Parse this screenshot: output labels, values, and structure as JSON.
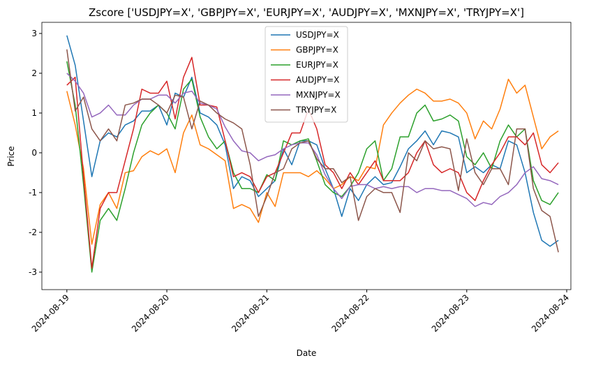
{
  "chart_data": {
    "type": "line",
    "title": "Zscore ['USDJPY=X', 'GBPJPY=X', 'EURJPY=X', 'AUDJPY=X', 'MXNJPY=X', 'TRYJPY=X']",
    "xlabel": "Date",
    "ylabel": "Price",
    "x": [
      "2024-08-19 00:00",
      "2024-08-19 02:00",
      "2024-08-19 04:00",
      "2024-08-19 06:00",
      "2024-08-19 08:00",
      "2024-08-19 10:00",
      "2024-08-19 12:00",
      "2024-08-19 14:00",
      "2024-08-19 16:00",
      "2024-08-19 18:00",
      "2024-08-19 20:00",
      "2024-08-19 22:00",
      "2024-08-20 00:00",
      "2024-08-20 02:00",
      "2024-08-20 04:00",
      "2024-08-20 06:00",
      "2024-08-20 08:00",
      "2024-08-20 10:00",
      "2024-08-20 12:00",
      "2024-08-20 14:00",
      "2024-08-20 16:00",
      "2024-08-20 18:00",
      "2024-08-20 20:00",
      "2024-08-20 22:00",
      "2024-08-21 00:00",
      "2024-08-21 02:00",
      "2024-08-21 04:00",
      "2024-08-21 06:00",
      "2024-08-21 08:00",
      "2024-08-21 10:00",
      "2024-08-21 12:00",
      "2024-08-21 14:00",
      "2024-08-21 16:00",
      "2024-08-21 18:00",
      "2024-08-21 20:00",
      "2024-08-21 22:00",
      "2024-08-22 00:00",
      "2024-08-22 02:00",
      "2024-08-22 04:00",
      "2024-08-22 06:00",
      "2024-08-22 08:00",
      "2024-08-22 10:00",
      "2024-08-22 12:00",
      "2024-08-22 14:00",
      "2024-08-22 16:00",
      "2024-08-22 18:00",
      "2024-08-22 20:00",
      "2024-08-22 22:00",
      "2024-08-23 00:00",
      "2024-08-23 02:00",
      "2024-08-23 04:00",
      "2024-08-23 06:00",
      "2024-08-23 08:00",
      "2024-08-23 10:00",
      "2024-08-23 12:00",
      "2024-08-23 14:00",
      "2024-08-23 16:00",
      "2024-08-23 18:00",
      "2024-08-23 20:00",
      "2024-08-23 22:00"
    ],
    "series": [
      {
        "name": "USDJPY=X",
        "color": "#1f77b4",
        "values": [
          2.95,
          2.2,
          0.8,
          -0.6,
          0.3,
          0.5,
          0.4,
          0.7,
          0.8,
          1.05,
          1.05,
          1.2,
          0.7,
          1.5,
          1.4,
          1.9,
          1.0,
          0.9,
          0.7,
          0.2,
          -0.9,
          -0.6,
          -0.7,
          -1.1,
          -0.9,
          -0.7,
          0.1,
          -0.3,
          0.3,
          0.3,
          0.2,
          -0.4,
          -0.9,
          -1.6,
          -0.9,
          -1.2,
          -0.8,
          -0.6,
          -0.8,
          -0.75,
          -0.35,
          0.1,
          0.3,
          0.55,
          0.2,
          0.55,
          0.5,
          0.4,
          -0.5,
          -0.35,
          -0.5,
          -0.3,
          -0.4,
          0.3,
          0.2,
          -0.5,
          -1.5,
          -2.2,
          -2.35,
          -2.2
        ]
      },
      {
        "name": "GBPJPY=X",
        "color": "#ff7f0e",
        "values": [
          1.55,
          0.7,
          -0.4,
          -2.3,
          -1.3,
          -1.0,
          -1.4,
          -0.5,
          -0.45,
          -0.1,
          0.05,
          -0.05,
          0.1,
          -0.5,
          0.5,
          0.95,
          0.2,
          0.1,
          -0.05,
          -0.2,
          -1.4,
          -1.3,
          -1.4,
          -1.75,
          -1.0,
          -1.35,
          -0.5,
          -0.5,
          -0.5,
          -0.6,
          -0.45,
          -0.65,
          -0.9,
          -0.8,
          -0.6,
          -0.7,
          -0.35,
          -0.4,
          0.7,
          1.0,
          1.25,
          1.45,
          1.6,
          1.5,
          1.3,
          1.3,
          1.35,
          1.25,
          1.0,
          0.35,
          0.8,
          0.6,
          1.1,
          1.85,
          1.5,
          1.7,
          0.9,
          0.1,
          0.4,
          0.55
        ]
      },
      {
        "name": "EURJPY=X",
        "color": "#2ca02c",
        "values": [
          2.3,
          1.2,
          -0.8,
          -3.0,
          -1.7,
          -1.4,
          -1.7,
          -0.9,
          0,
          0.7,
          1.0,
          1.2,
          1.0,
          0.6,
          1.6,
          1.85,
          0.9,
          0.4,
          0.1,
          0.3,
          -0.5,
          -0.9,
          -0.9,
          -1.0,
          -0.55,
          -0.7,
          0.3,
          0.2,
          0.3,
          0.35,
          -0.2,
          -0.8,
          -1.0,
          -1.1,
          -0.85,
          -0.5,
          0.1,
          0.3,
          -0.7,
          -0.4,
          0.4,
          0.4,
          1.0,
          1.2,
          0.8,
          0.85,
          0.95,
          0.8,
          -0.1,
          -0.3,
          0,
          -0.4,
          0.3,
          0.7,
          0.4,
          0.6,
          -0.7,
          -1.2,
          -1.3,
          -1.0
        ]
      },
      {
        "name": "AUDJPY=X",
        "color": "#d62728",
        "values": [
          1.7,
          1.9,
          -0.6,
          -2.9,
          -1.4,
          -1.0,
          -1.0,
          -0.2,
          0.6,
          1.6,
          1.5,
          1.5,
          1.8,
          0.85,
          1.9,
          2.4,
          1.2,
          1.2,
          1.15,
          0.3,
          -0.6,
          -0.5,
          -0.6,
          -1.0,
          -0.6,
          -0.5,
          0.0,
          0.5,
          0.5,
          1.1,
          0.6,
          -0.3,
          -0.5,
          -0.9,
          -0.5,
          -0.8,
          -0.5,
          -0.2,
          -0.7,
          -0.7,
          -0.7,
          -0.5,
          0,
          0.3,
          -0.3,
          -0.5,
          -0.4,
          -0.5,
          -1.0,
          -1.2,
          -0.7,
          -0.3,
          0,
          0.4,
          0.4,
          0.2,
          0.5,
          -0.3,
          -0.5,
          -0.25
        ]
      },
      {
        "name": "MXNJPY=X",
        "color": "#9467bd",
        "values": [
          2.0,
          1.8,
          1.5,
          0.9,
          1.0,
          1.2,
          0.95,
          0.95,
          1.2,
          1.35,
          1.35,
          1.45,
          1.45,
          1.25,
          1.5,
          1.55,
          1.25,
          1.2,
          1.1,
          0.65,
          0.3,
          0.05,
          0,
          -0.2,
          -0.1,
          -0.05,
          0.1,
          0.2,
          0.25,
          0.25,
          -0.05,
          -0.55,
          -0.9,
          -1.15,
          -0.85,
          -0.8,
          -0.8,
          -0.9,
          -0.85,
          -0.9,
          -0.85,
          -0.85,
          -1.0,
          -0.9,
          -0.9,
          -0.95,
          -0.95,
          -1.05,
          -1.15,
          -1.35,
          -1.25,
          -1.3,
          -1.1,
          -1.0,
          -0.8,
          -0.5,
          -0.35,
          -0.65,
          -0.7,
          -0.8
        ]
      },
      {
        "name": "TRYJPY=X",
        "color": "#8c564b",
        "values": [
          2.6,
          1.05,
          1.4,
          0.6,
          0.3,
          0.6,
          0.3,
          1.2,
          1.25,
          1.35,
          1.35,
          1.2,
          1.0,
          1.45,
          1.4,
          0.6,
          1.3,
          1.2,
          1.0,
          0.85,
          0.75,
          0.6,
          -0.3,
          -1.6,
          -1.1,
          -0.5,
          -0.4,
          0.1,
          0.25,
          0.3,
          -0.15,
          -0.4,
          -0.4,
          -0.75,
          -0.6,
          -1.7,
          -1.1,
          -0.9,
          -1.0,
          -1.0,
          -1.5,
          0,
          -0.2,
          0.3,
          0.1,
          0.15,
          0.1,
          -0.95,
          0.35,
          -0.5,
          -0.8,
          -0.4,
          -0.4,
          -0.8,
          0.6,
          0.6,
          -0.9,
          -1.45,
          -1.6,
          -2.5
        ]
      }
    ],
    "xlim": [
      "2024-08-18 18:00",
      "2024-08-24 01:00"
    ],
    "xticks": [
      "2024-08-19",
      "2024-08-20",
      "2024-08-21",
      "2024-08-22",
      "2024-08-23",
      "2024-08-24"
    ],
    "ylim": [
      -3.44,
      3.28
    ],
    "yticks": [
      -3,
      -2,
      -1,
      0,
      1,
      2,
      3
    ],
    "grid": false,
    "legend": "upper center"
  }
}
